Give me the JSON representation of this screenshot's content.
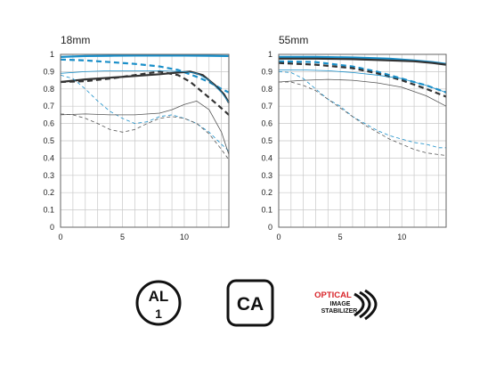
{
  "chart_data": [
    {
      "type": "line",
      "title": "18mm",
      "xlim": [
        0,
        13.6
      ],
      "ylim": [
        0,
        1
      ],
      "x_ticks": [
        0,
        5,
        10
      ],
      "y_ticks": [
        0,
        0.1,
        0.2,
        0.3,
        0.4,
        0.5,
        0.6,
        0.7,
        0.8,
        0.9,
        1
      ],
      "y_tick_labels": [
        "0",
        "0.1",
        "0.2",
        "0.3",
        "0.4",
        "0.5",
        "0.6",
        "0.7",
        "0.8",
        "0.9",
        "1"
      ],
      "grid": true,
      "series": [
        {
          "color": "#1a8fc9",
          "width": 2.2,
          "dash": "",
          "points": [
            [
              0,
              0.985
            ],
            [
              2,
              0.99
            ],
            [
              4,
              0.992
            ],
            [
              6,
              0.993
            ],
            [
              8,
              0.993
            ],
            [
              10,
              0.993
            ],
            [
              12,
              0.992
            ],
            [
              13.6,
              0.99
            ]
          ]
        },
        {
          "color": "#1a8fc9",
          "width": 2.2,
          "dash": "6,4",
          "points": [
            [
              0,
              0.97
            ],
            [
              2,
              0.965
            ],
            [
              4,
              0.955
            ],
            [
              6,
              0.945
            ],
            [
              8,
              0.93
            ],
            [
              9.5,
              0.91
            ],
            [
              11,
              0.87
            ],
            [
              12,
              0.84
            ],
            [
              13,
              0.8
            ],
            [
              13.6,
              0.78
            ]
          ]
        },
        {
          "color": "#333333",
          "width": 2.2,
          "dash": "",
          "points": [
            [
              0,
              0.84
            ],
            [
              2,
              0.855
            ],
            [
              4,
              0.865
            ],
            [
              6,
              0.875
            ],
            [
              8,
              0.885
            ],
            [
              9.5,
              0.895
            ],
            [
              10.5,
              0.9
            ],
            [
              11.5,
              0.88
            ],
            [
              12.5,
              0.82
            ],
            [
              13.2,
              0.77
            ],
            [
              13.6,
              0.72
            ]
          ]
        },
        {
          "color": "#333333",
          "width": 2.2,
          "dash": "6,4",
          "points": [
            [
              0,
              0.84
            ],
            [
              2,
              0.845
            ],
            [
              4,
              0.86
            ],
            [
              6,
              0.88
            ],
            [
              8,
              0.9
            ],
            [
              9.5,
              0.88
            ],
            [
              10.5,
              0.84
            ],
            [
              11.5,
              0.78
            ],
            [
              12.5,
              0.72
            ],
            [
              13.6,
              0.65
            ]
          ]
        },
        {
          "color": "#1a8fc9",
          "width": 0.8,
          "dash": "",
          "points": [
            [
              0,
              0.89
            ],
            [
              2,
              0.9
            ],
            [
              4,
              0.905
            ],
            [
              6,
              0.905
            ],
            [
              8,
              0.905
            ],
            [
              10,
              0.9
            ],
            [
              11,
              0.89
            ],
            [
              12,
              0.85
            ],
            [
              13,
              0.78
            ],
            [
              13.6,
              0.72
            ]
          ]
        },
        {
          "color": "#1a8fc9",
          "width": 0.8,
          "dash": "4,3",
          "points": [
            [
              0,
              0.88
            ],
            [
              1,
              0.86
            ],
            [
              2,
              0.8
            ],
            [
              3,
              0.73
            ],
            [
              4,
              0.67
            ],
            [
              5,
              0.63
            ],
            [
              6,
              0.6
            ],
            [
              7,
              0.61
            ],
            [
              8,
              0.64
            ],
            [
              9,
              0.65
            ],
            [
              10,
              0.63
            ],
            [
              11,
              0.6
            ],
            [
              12,
              0.55
            ],
            [
              13,
              0.48
            ],
            [
              13.6,
              0.44
            ]
          ]
        },
        {
          "color": "#555555",
          "width": 0.8,
          "dash": "",
          "points": [
            [
              0,
              0.65
            ],
            [
              2,
              0.655
            ],
            [
              4,
              0.65
            ],
            [
              6,
              0.65
            ],
            [
              8,
              0.66
            ],
            [
              9,
              0.68
            ],
            [
              10,
              0.71
            ],
            [
              11,
              0.73
            ],
            [
              12,
              0.68
            ],
            [
              13,
              0.55
            ],
            [
              13.6,
              0.42
            ]
          ]
        },
        {
          "color": "#555555",
          "width": 0.8,
          "dash": "4,3",
          "points": [
            [
              0,
              0.655
            ],
            [
              1,
              0.65
            ],
            [
              2,
              0.63
            ],
            [
              3,
              0.6
            ],
            [
              4,
              0.565
            ],
            [
              5,
              0.55
            ],
            [
              6,
              0.565
            ],
            [
              7,
              0.6
            ],
            [
              8,
              0.63
            ],
            [
              9,
              0.64
            ],
            [
              10,
              0.63
            ],
            [
              11,
              0.6
            ],
            [
              12,
              0.54
            ],
            [
              13,
              0.45
            ],
            [
              13.6,
              0.39
            ]
          ]
        }
      ]
    },
    {
      "type": "line",
      "title": "55mm",
      "xlim": [
        0,
        13.6
      ],
      "ylim": [
        0,
        1
      ],
      "x_ticks": [
        0,
        5,
        10
      ],
      "y_ticks": [
        0,
        0.1,
        0.2,
        0.3,
        0.4,
        0.5,
        0.6,
        0.7,
        0.8,
        0.9,
        1
      ],
      "y_tick_labels": [
        "0",
        "0.1",
        "0.2",
        "0.3",
        "0.4",
        "0.5",
        "0.6",
        "0.7",
        "0.8",
        "0.9",
        "1"
      ],
      "grid": true,
      "series": [
        {
          "color": "#1a8fc9",
          "width": 2.2,
          "dash": "",
          "points": [
            [
              0,
              0.985
            ],
            [
              3,
              0.985
            ],
            [
              6,
              0.982
            ],
            [
              9,
              0.975
            ],
            [
              11,
              0.965
            ],
            [
              12.5,
              0.955
            ],
            [
              13.6,
              0.945
            ]
          ]
        },
        {
          "color": "#1a8fc9",
          "width": 2.2,
          "dash": "6,4",
          "points": [
            [
              0,
              0.96
            ],
            [
              3,
              0.955
            ],
            [
              6,
              0.93
            ],
            [
              8,
              0.9
            ],
            [
              10,
              0.86
            ],
            [
              12,
              0.82
            ],
            [
              13.6,
              0.78
            ]
          ]
        },
        {
          "color": "#333333",
          "width": 2.2,
          "dash": "",
          "points": [
            [
              0,
              0.975
            ],
            [
              3,
              0.975
            ],
            [
              6,
              0.972
            ],
            [
              9,
              0.965
            ],
            [
              11,
              0.96
            ],
            [
              12.5,
              0.95
            ],
            [
              13.6,
              0.94
            ]
          ]
        },
        {
          "color": "#333333",
          "width": 2.2,
          "dash": "6,4",
          "points": [
            [
              0,
              0.95
            ],
            [
              3,
              0.94
            ],
            [
              6,
              0.92
            ],
            [
              8,
              0.89
            ],
            [
              10,
              0.85
            ],
            [
              12,
              0.8
            ],
            [
              13.6,
              0.755
            ]
          ]
        },
        {
          "color": "#1a8fc9",
          "width": 0.8,
          "dash": "",
          "points": [
            [
              0,
              0.91
            ],
            [
              2,
              0.91
            ],
            [
              4,
              0.905
            ],
            [
              6,
              0.895
            ],
            [
              8,
              0.88
            ],
            [
              10,
              0.86
            ],
            [
              12,
              0.82
            ],
            [
              13.6,
              0.78
            ]
          ]
        },
        {
          "color": "#555555",
          "width": 0.8,
          "dash": "",
          "points": [
            [
              0,
              0.84
            ],
            [
              2,
              0.85
            ],
            [
              4,
              0.855
            ],
            [
              6,
              0.85
            ],
            [
              8,
              0.835
            ],
            [
              10,
              0.81
            ],
            [
              12,
              0.76
            ],
            [
              13.6,
              0.7
            ]
          ]
        },
        {
          "color": "#1a8fc9",
          "width": 0.8,
          "dash": "4,3",
          "points": [
            [
              0,
              0.9
            ],
            [
              1,
              0.895
            ],
            [
              2,
              0.86
            ],
            [
              3,
              0.8
            ],
            [
              4,
              0.74
            ],
            [
              5,
              0.7
            ],
            [
              6,
              0.64
            ],
            [
              7,
              0.6
            ],
            [
              8,
              0.56
            ],
            [
              9,
              0.53
            ],
            [
              10,
              0.51
            ],
            [
              11,
              0.49
            ],
            [
              12,
              0.48
            ],
            [
              13,
              0.46
            ],
            [
              13.6,
              0.46
            ]
          ]
        },
        {
          "color": "#555555",
          "width": 0.8,
          "dash": "4,3",
          "points": [
            [
              0,
              0.84
            ],
            [
              1,
              0.84
            ],
            [
              2,
              0.82
            ],
            [
              3,
              0.79
            ],
            [
              4,
              0.74
            ],
            [
              5,
              0.69
            ],
            [
              6,
              0.64
            ],
            [
              7,
              0.59
            ],
            [
              8,
              0.55
            ],
            [
              9,
              0.51
            ],
            [
              10,
              0.48
            ],
            [
              11,
              0.45
            ],
            [
              12,
              0.43
            ],
            [
              13,
              0.42
            ],
            [
              13.6,
              0.415
            ]
          ]
        }
      ]
    }
  ],
  "badges": {
    "al_top": "AL",
    "al_bottom": "1",
    "ca": "CA",
    "ois_line1": "OPTICAL",
    "ois_line2": "IMAGE",
    "ois_line3": "STABILIZER"
  },
  "colors": {
    "accent_blue": "#1a8fc9",
    "dark": "#333333",
    "ois_red": "#d9262b",
    "grid": "#c8c8c8"
  }
}
